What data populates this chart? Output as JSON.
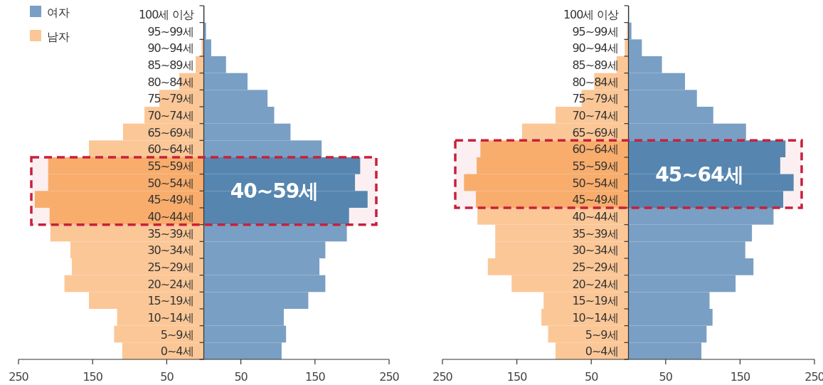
{
  "chart_data": [
    {
      "type": "bar",
      "orientation": "horizontal",
      "stacked": true,
      "legend": "top left",
      "categories": [
        "100세 이상",
        "95~99세",
        "90~94세",
        "85~89세",
        "80~84세",
        "75~79세",
        "70~74세",
        "65~69세",
        "60~64세",
        "55~59세",
        "50~54세",
        "45~49세",
        "40~44세",
        "35~39세",
        "30~34세",
        "25~29세",
        "20~24세",
        "15~19세",
        "10~14세",
        "5~9세",
        "0~4세"
      ],
      "series": [
        {
          "name": "여자",
          "color": "#7a9fc4",
          "values": [
            1,
            3,
            10,
            30,
            59,
            86,
            95,
            117,
            159,
            211,
            204,
            221,
            196,
            193,
            164,
            156,
            164,
            141,
            108,
            111,
            105
          ],
          "colors": [
            "#7a9fc4",
            "#7a9fc4",
            "#7a9fc4",
            "#7a9fc4",
            "#7a9fc4",
            "#7a9fc4",
            "#7a9fc4",
            "#7a9fc4",
            "#7a9fc4",
            "#5686b0",
            "#5686b0",
            "#5686b0",
            "#5686b0",
            "#7a9fc4",
            "#7a9fc4",
            "#7a9fc4",
            "#7a9fc4",
            "#7a9fc4",
            "#7a9fc4",
            "#7a9fc4",
            "#7a9fc4"
          ]
        },
        {
          "name": "남자",
          "color": "#fbc797",
          "values": [
            0,
            -1,
            -3,
            -11,
            -33,
            -60,
            -80,
            -109,
            -155,
            -210,
            -210,
            -228,
            -208,
            -207,
            -180,
            -178,
            -188,
            -155,
            -117,
            -121,
            -110
          ],
          "colors": [
            "#fbc797",
            "#fbc797",
            "#fbc797",
            "#fbc797",
            "#fbc797",
            "#fbc797",
            "#fbc797",
            "#fbc797",
            "#fbc797",
            "#f8ad6c",
            "#f8ad6c",
            "#f8ad6c",
            "#f8ad6c",
            "#fbc797",
            "#fbc797",
            "#fbc797",
            "#fbc797",
            "#fbc797",
            "#fbc797",
            "#fbc797",
            "#fbc797"
          ]
        }
      ],
      "xlim": [
        -250,
        250
      ],
      "xticks": [
        {
          "value": -250,
          "label": "250"
        },
        {
          "value": -150,
          "label": "150"
        },
        {
          "value": -50,
          "label": "50"
        },
        50,
        150,
        250
      ],
      "bands": [
        {
          "axis": "y",
          "from": "55~59세",
          "to": "40~44세",
          "label": "40~59세",
          "color": "#c8203c"
        }
      ]
    },
    {
      "type": "bar",
      "orientation": "horizontal",
      "stacked": true,
      "categories": [
        "100세 이상",
        "95~99세",
        "90~94세",
        "85~89세",
        "80~84세",
        "75~79세",
        "70~74세",
        "65~69세",
        "60~64세",
        "55~59세",
        "50~54세",
        "45~49세",
        "40~44세",
        "35~39세",
        "30~34세",
        "25~29세",
        "20~24세",
        "15~19세",
        "10~14세",
        "5~9세",
        "0~4세"
      ],
      "series": [
        {
          "values": [
            1,
            4,
            18,
            45,
            76,
            92,
            114,
            158,
            211,
            204,
            222,
            208,
            195,
            166,
            157,
            168,
            144,
            109,
            113,
            105,
            98
          ],
          "colors": [
            "#7a9fc4",
            "#7a9fc4",
            "#7a9fc4",
            "#7a9fc4",
            "#7a9fc4",
            "#7a9fc4",
            "#7a9fc4",
            "#7a9fc4",
            "#5686b0",
            "#5686b0",
            "#5686b0",
            "#5686b0",
            "#7a9fc4",
            "#7a9fc4",
            "#7a9fc4",
            "#7a9fc4",
            "#7a9fc4",
            "#7a9fc4",
            "#7a9fc4",
            "#7a9fc4",
            "#7a9fc4"
          ]
        },
        {
          "values": [
            0,
            -2,
            -5,
            -16,
            -46,
            -63,
            -98,
            -143,
            -199,
            -204,
            -221,
            -205,
            -203,
            -179,
            -179,
            -189,
            -157,
            -114,
            -117,
            -108,
            -98
          ],
          "colors": [
            "#fbc797",
            "#fbc797",
            "#fbc797",
            "#fbc797",
            "#fbc797",
            "#fbc797",
            "#fbc797",
            "#fbc797",
            "#f8ad6c",
            "#f8ad6c",
            "#f8ad6c",
            "#f8ad6c",
            "#fbc797",
            "#fbc797",
            "#fbc797",
            "#fbc797",
            "#fbc797",
            "#fbc797",
            "#fbc797",
            "#fbc797",
            "#fbc797"
          ]
        }
      ],
      "xlim": [
        -250,
        250
      ],
      "xticks": [
        {
          "value": -250,
          "label": "250"
        },
        {
          "value": -150,
          "label": "150"
        },
        {
          "value": -50,
          "label": "50"
        },
        50,
        150,
        250
      ],
      "bands": [
        {
          "axis": "y",
          "from": "60~64세",
          "to": "45~49세",
          "label": "45~64세",
          "color": "#c8203c"
        }
      ]
    }
  ]
}
